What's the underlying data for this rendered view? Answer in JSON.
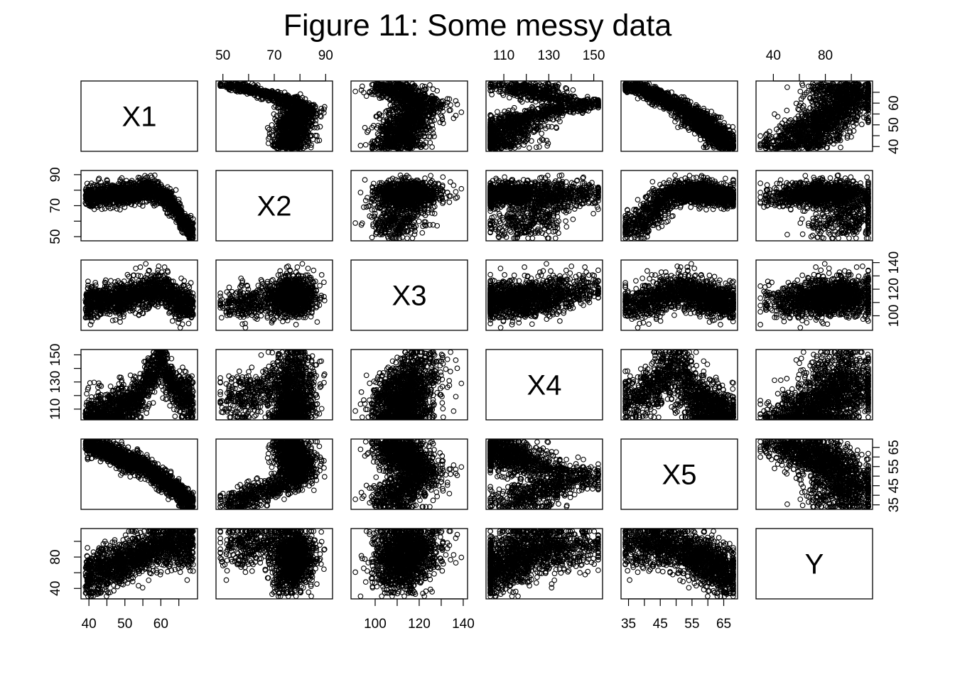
{
  "chart_data": {
    "type": "scatter-matrix",
    "title": "Figure 11: Some messy data",
    "variables": [
      "X1",
      "X2",
      "X3",
      "X4",
      "X5",
      "Y"
    ],
    "ranges": {
      "X1": [
        39,
        69
      ],
      "X2": [
        49,
        91
      ],
      "X3": [
        91,
        140
      ],
      "X4": [
        104,
        152
      ],
      "X5": [
        34,
        68
      ],
      "Y": [
        30,
        113
      ]
    },
    "axis_ticks": {
      "X1": [
        40,
        45,
        50,
        55,
        60,
        65
      ],
      "X2": [
        50,
        60,
        70,
        80,
        90
      ],
      "X3": [
        100,
        110,
        120,
        130,
        140
      ],
      "X4": [
        110,
        120,
        130,
        140,
        150
      ],
      "X5": [
        35,
        40,
        45,
        50,
        55,
        60,
        65
      ],
      "Y": [
        40,
        60,
        80,
        100
      ]
    },
    "axis_tick_labels": {
      "X1": [
        "40",
        "50",
        "60"
      ],
      "X2": [
        "50",
        "70",
        "90"
      ],
      "X3": [
        "100",
        "120",
        "140"
      ],
      "X4": [
        "110",
        "130",
        "150"
      ],
      "X5": [
        "35",
        "45",
        "55",
        "65"
      ],
      "Y": [
        "40",
        "80"
      ]
    },
    "axes": {
      "bottom": [
        "X1",
        "X3",
        "X5"
      ],
      "top": [
        "X2",
        "X4",
        "Y"
      ],
      "left": [
        "X2",
        "X4",
        "Y"
      ],
      "right": [
        "X1",
        "X3",
        "X5"
      ]
    },
    "x1_curves": {
      "X2": [
        [
          40,
          76
        ],
        [
          45,
          77
        ],
        [
          50,
          78
        ],
        [
          55,
          79.5
        ],
        [
          58,
          80
        ],
        [
          62,
          74
        ],
        [
          65,
          64
        ],
        [
          68,
          54
        ]
      ],
      "X3": [
        [
          40,
          109
        ],
        [
          45,
          112
        ],
        [
          50,
          114
        ],
        [
          55,
          117
        ],
        [
          60,
          121
        ],
        [
          65,
          110
        ],
        [
          68,
          107
        ]
      ],
      "X4": [
        [
          40,
          105
        ],
        [
          45,
          108
        ],
        [
          50,
          112
        ],
        [
          54,
          118
        ],
        [
          57,
          135
        ],
        [
          60,
          145
        ],
        [
          64,
          125
        ],
        [
          68,
          117
        ]
      ],
      "X5": [
        [
          40,
          67
        ],
        [
          45,
          63
        ],
        [
          50,
          59
        ],
        [
          55,
          55
        ],
        [
          60,
          49
        ],
        [
          64,
          43
        ],
        [
          68,
          36
        ]
      ],
      "Y": [
        [
          40,
          55
        ],
        [
          45,
          65
        ],
        [
          50,
          75
        ],
        [
          55,
          85
        ],
        [
          60,
          95
        ],
        [
          65,
          97
        ],
        [
          68,
          96
        ]
      ]
    },
    "x1_spread": {
      "X2": 3.5,
      "X3": 6,
      "X4": 8,
      "X5": 3,
      "Y": 14
    },
    "grid": false,
    "legend": "none"
  }
}
